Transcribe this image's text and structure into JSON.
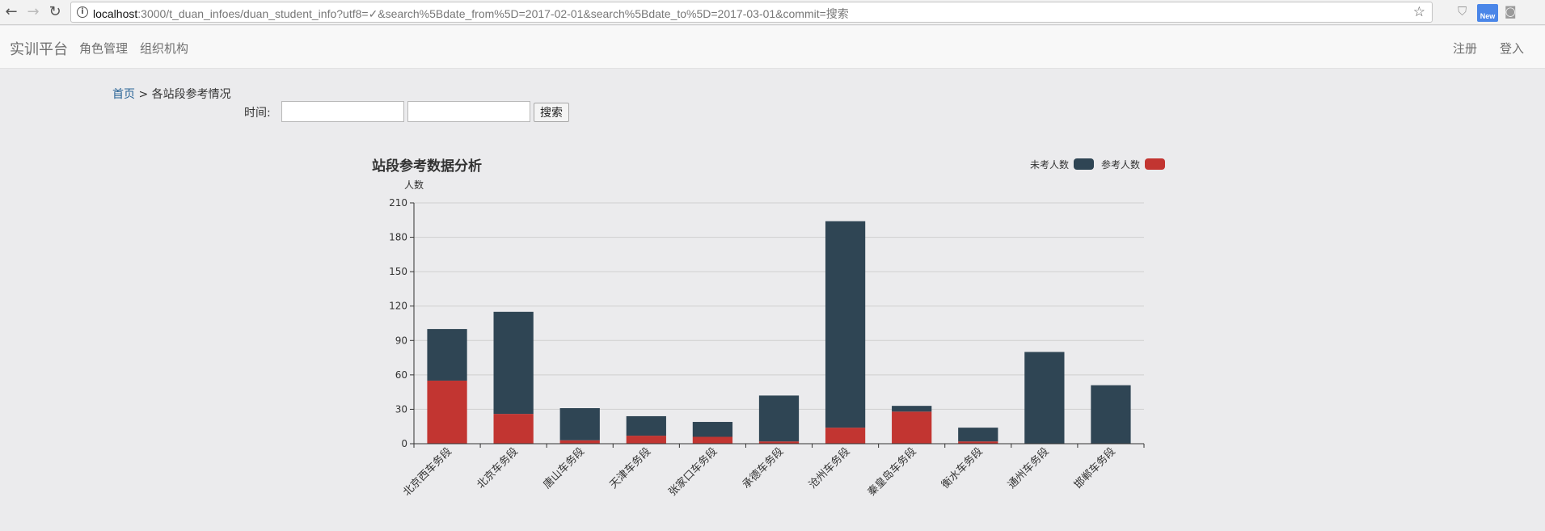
{
  "browser": {
    "url_host": "localhost",
    "url_rest": ":3000/t_duan_infoes/duan_student_info?utf8=✓&search%5Bdate_from%5D=2017-02-01&search%5Bdate_to%5D=2017-03-01&commit=搜索",
    "new_badge": "New",
    "icons": [
      "back-arrow-icon",
      "forward-arrow-icon",
      "reload-icon",
      "info-icon",
      "star-icon",
      "shield-icon",
      "camera-icon"
    ]
  },
  "navbar": {
    "brand": "实训平台",
    "links": [
      "角色管理",
      "组织机构"
    ],
    "right_links": [
      "注册",
      "登入"
    ]
  },
  "breadcrumb": {
    "home": "首页",
    "separator": ">",
    "current": "各站段参考情况"
  },
  "search": {
    "label": "时间:",
    "date_from": "",
    "date_to": "",
    "button": "搜索"
  },
  "chart_data": {
    "type": "bar",
    "stacked": true,
    "title": "站段参考数据分析",
    "xlabel": "",
    "ylabel": "人数",
    "ylim": [
      0,
      210
    ],
    "yticks": [
      0,
      30,
      60,
      90,
      120,
      150,
      180,
      210
    ],
    "grid": true,
    "legend_position": "top-right",
    "categories": [
      "北京西车务段",
      "北京车务段",
      "唐山车务段",
      "天津车务段",
      "张家口车务段",
      "承德车务段",
      "沧州车务段",
      "秦皇岛车务段",
      "衡水车务段",
      "通州车务段",
      "邯郸车务段"
    ],
    "series": [
      {
        "name": "参考人数",
        "color": "#c23531",
        "values": [
          55,
          26,
          3,
          7,
          6,
          2,
          14,
          28,
          2,
          0,
          0
        ]
      },
      {
        "name": "未考人数",
        "color": "#2f4554",
        "values": [
          45,
          89,
          28,
          17,
          13,
          40,
          180,
          5,
          12,
          80,
          51
        ]
      }
    ],
    "legend_order": [
      "未考人数",
      "参考人数"
    ]
  }
}
